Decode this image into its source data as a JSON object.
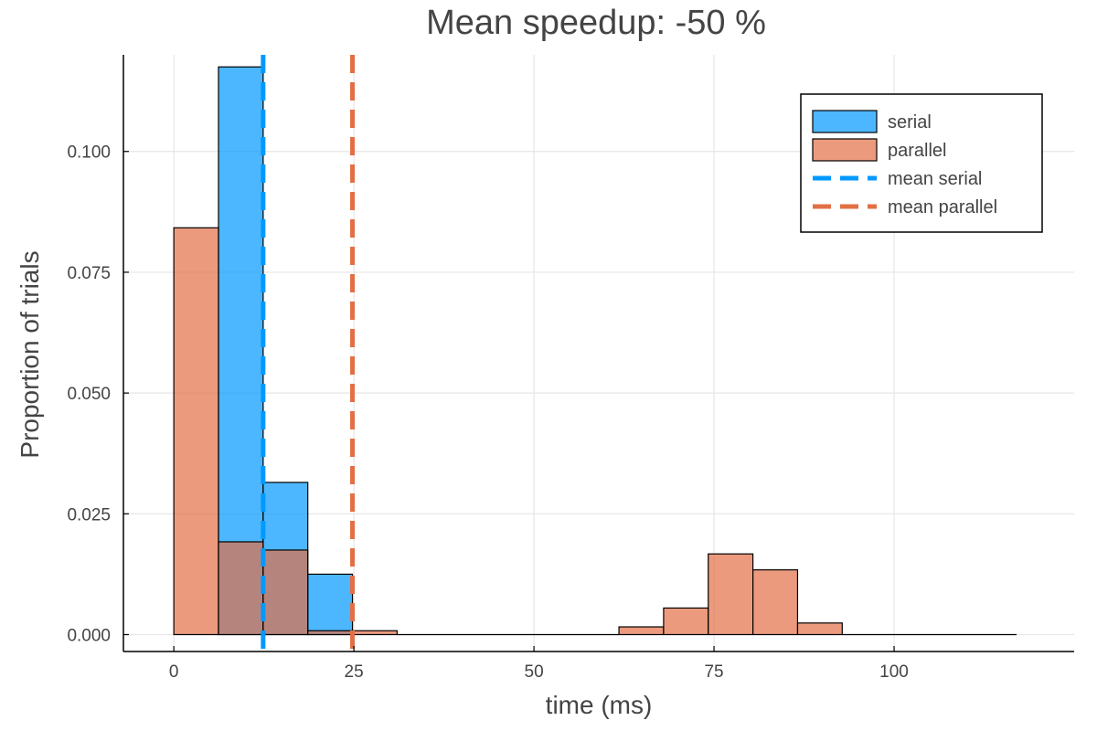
{
  "chart_data": {
    "type": "histogram",
    "title": "Mean speedup: -50 %",
    "xlabel": "time (ms)",
    "ylabel": "Proportion of trials",
    "xlim": [
      -7,
      125
    ],
    "ylim": [
      -0.0035,
      0.12
    ],
    "xticks": [
      0,
      25,
      50,
      75,
      100
    ],
    "yticks": [
      0.0,
      0.025,
      0.05,
      0.075,
      0.1
    ],
    "ytick_labels": [
      "0.000",
      "0.025",
      "0.050",
      "0.075",
      "0.100"
    ],
    "grid": true,
    "legend_position": "top-right",
    "series": [
      {
        "name": "serial",
        "kind": "bars",
        "color": "#0099ff",
        "bins": [
          {
            "x0": 6.2,
            "x1": 12.4,
            "value": 0.1175
          },
          {
            "x0": 12.4,
            "x1": 18.6,
            "value": 0.0315
          },
          {
            "x0": 18.6,
            "x1": 24.8,
            "value": 0.0125
          }
        ]
      },
      {
        "name": "parallel",
        "kind": "bars",
        "color": "#e26f46",
        "bins": [
          {
            "x0": 0.0,
            "x1": 6.2,
            "value": 0.0842
          },
          {
            "x0": 6.2,
            "x1": 12.4,
            "value": 0.0192
          },
          {
            "x0": 12.4,
            "x1": 18.6,
            "value": 0.0175
          },
          {
            "x0": 18.6,
            "x1": 24.8,
            "value": 0.0008
          },
          {
            "x0": 24.8,
            "x1": 31.0,
            "value": 0.0008
          },
          {
            "x0": 31.0,
            "x1": 61.8,
            "value": 0.0
          },
          {
            "x0": 61.8,
            "x1": 68.0,
            "value": 0.0016
          },
          {
            "x0": 68.0,
            "x1": 74.2,
            "value": 0.0055
          },
          {
            "x0": 74.2,
            "x1": 80.4,
            "value": 0.0167
          },
          {
            "x0": 80.4,
            "x1": 86.6,
            "value": 0.0134
          },
          {
            "x0": 86.6,
            "x1": 92.8,
            "value": 0.0024
          },
          {
            "x0": 92.8,
            "x1": 117.0,
            "value": 0.0
          }
        ]
      },
      {
        "name": "mean serial",
        "kind": "vline",
        "color": "#0099ff",
        "x": 12.4
      },
      {
        "name": "mean parallel",
        "kind": "vline",
        "color": "#e26f46",
        "x": 24.8
      }
    ]
  }
}
